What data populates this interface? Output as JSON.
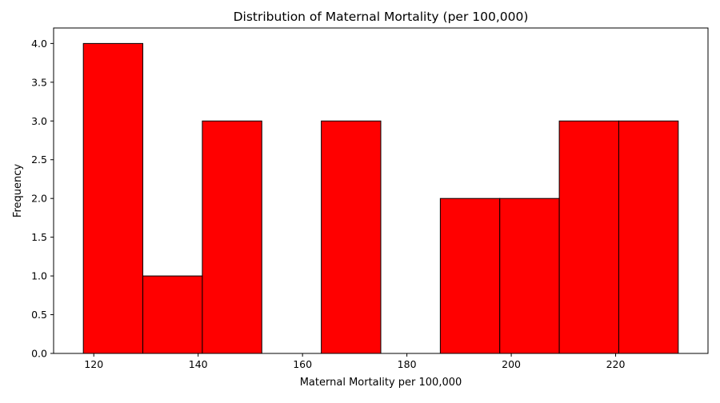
{
  "chart_data": {
    "type": "bar",
    "title": "Distribution of Maternal Mortality (per 100,000)",
    "xlabel": "Maternal Mortality per 100,000",
    "ylabel": "Frequency",
    "xlim": [
      112.3,
      237.7
    ],
    "ylim": [
      0,
      4.2
    ],
    "x_ticks": [
      120,
      140,
      160,
      180,
      200,
      220
    ],
    "x_tick_labels": [
      "120",
      "140",
      "160",
      "180",
      "200",
      "220"
    ],
    "y_ticks": [
      0,
      0.5,
      1,
      1.5,
      2,
      2.5,
      3,
      3.5,
      4
    ],
    "y_tick_labels": [
      "0.0",
      "0.5",
      "1.0",
      "1.5",
      "2.0",
      "2.5",
      "3.0",
      "3.5",
      "4.0"
    ],
    "bins": [
      {
        "x0": 118.0,
        "x1": 129.4,
        "value": 4
      },
      {
        "x0": 129.4,
        "x1": 140.8,
        "value": 1
      },
      {
        "x0": 140.8,
        "x1": 152.2,
        "value": 3
      },
      {
        "x0": 152.2,
        "x1": 163.6,
        "value": 0
      },
      {
        "x0": 163.6,
        "x1": 175.0,
        "value": 3
      },
      {
        "x0": 175.0,
        "x1": 186.4,
        "value": 0
      },
      {
        "x0": 186.4,
        "x1": 197.8,
        "value": 2
      },
      {
        "x0": 197.8,
        "x1": 209.2,
        "value": 2
      },
      {
        "x0": 209.2,
        "x1": 220.6,
        "value": 3
      },
      {
        "x0": 220.6,
        "x1": 232.0,
        "value": 3
      }
    ],
    "bar_color": "#ff0000",
    "edge_color": "#000000",
    "grid": false,
    "legend": false
  }
}
